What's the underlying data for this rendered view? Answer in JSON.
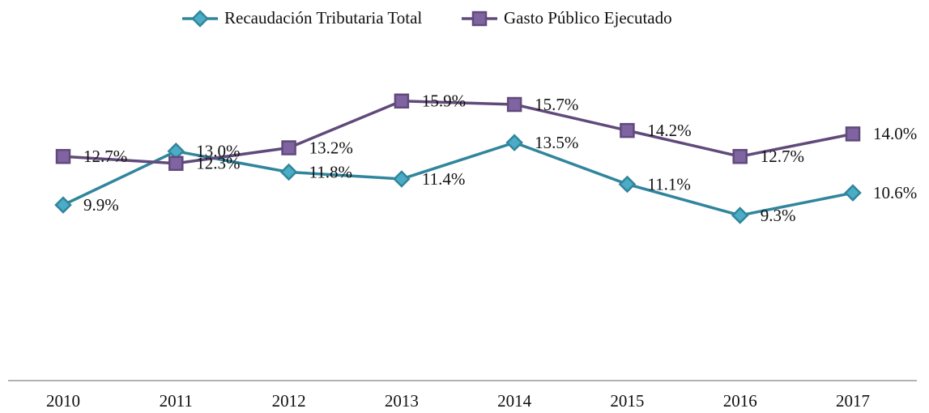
{
  "chart_data": {
    "type": "line",
    "categories": [
      "2010",
      "2011",
      "2012",
      "2013",
      "2014",
      "2015",
      "2016",
      "2017"
    ],
    "series": [
      {
        "name": "Recaudación Tributaria Total",
        "color": "#31859c",
        "marker": "diamond",
        "values": [
          9.9,
          13.0,
          11.8,
          11.4,
          13.5,
          11.1,
          9.3,
          10.6
        ],
        "value_labels": [
          "9.9%",
          "13.0%",
          "11.8%",
          "11.4%",
          "13.5%",
          "11.1%",
          "9.3%",
          "10.6%"
        ]
      },
      {
        "name": "Gasto Público Ejecutado",
        "color": "#604a7b",
        "marker": "square",
        "values": [
          12.7,
          12.3,
          13.2,
          15.9,
          15.7,
          14.2,
          12.7,
          14.0
        ],
        "value_labels": [
          "12.7%",
          "12.3%",
          "13.2%",
          "15.9%",
          "15.7%",
          "14.2%",
          "12.7%",
          "14.0%"
        ]
      }
    ],
    "ylim": [
      0,
      20
    ],
    "grid": false,
    "legend": "top"
  }
}
